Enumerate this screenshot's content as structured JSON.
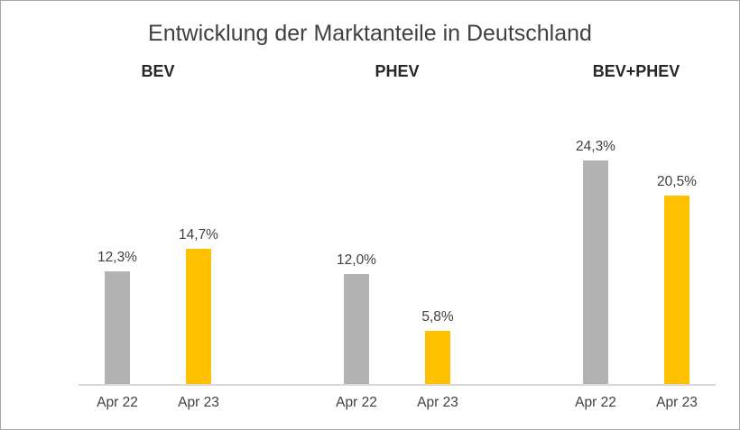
{
  "window": {
    "background": "#ffffff",
    "border_color": "#a6a6a6"
  },
  "chart_data": {
    "type": "bar",
    "title": "Entwicklung der Marktanteile in Deutschland",
    "groups": [
      "BEV",
      "PHEV",
      "BEV+PHEV"
    ],
    "x_tick_labels": [
      "Apr 22",
      "Apr 23"
    ],
    "series": [
      {
        "name": "Apr 22",
        "color": "#b3b3b3",
        "values": [
          12.3,
          12.0,
          24.3
        ]
      },
      {
        "name": "Apr 23",
        "color": "#ffc000",
        "values": [
          14.7,
          5.8,
          20.5
        ]
      }
    ],
    "value_labels": [
      [
        "12,3%",
        "14,7%"
      ],
      [
        "12,0%",
        "5,8%"
      ],
      [
        "24,3%",
        "20,5%"
      ]
    ],
    "xlabel": "",
    "ylabel": "",
    "ylim": [
      0,
      26
    ],
    "grid": false,
    "legend": "none",
    "title_color": "#404040",
    "label_color": "#404040",
    "axis_line_color": "#d9d9d9"
  }
}
